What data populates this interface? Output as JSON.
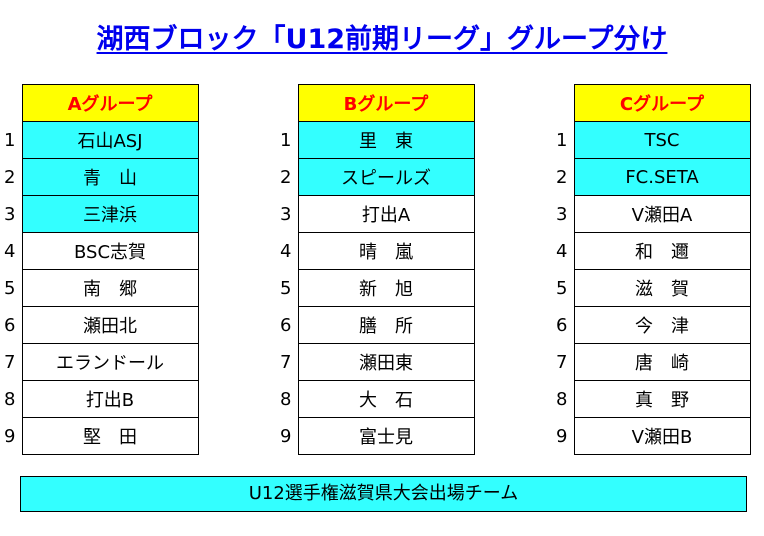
{
  "title": "湖西ブロック「U12前期リーグ」グループ分け",
  "highlight_color": "#33ffff",
  "header_fill_color": "#ffff00",
  "header_text_color": "#ff0000",
  "title_color": "#0000ee",
  "groups": [
    {
      "header": "Aグループ",
      "teams": [
        {
          "num": "1",
          "name": "石山ASJ",
          "qualified": true
        },
        {
          "num": "2",
          "name": "青　山",
          "qualified": true
        },
        {
          "num": "3",
          "name": "三津浜",
          "qualified": true
        },
        {
          "num": "4",
          "name": "BSC志賀",
          "qualified": false
        },
        {
          "num": "5",
          "name": "南　郷",
          "qualified": false
        },
        {
          "num": "6",
          "name": "瀬田北",
          "qualified": false
        },
        {
          "num": "7",
          "name": "エランドール",
          "qualified": false
        },
        {
          "num": "8",
          "name": "打出B",
          "qualified": false
        },
        {
          "num": "9",
          "name": "堅　田",
          "qualified": false
        }
      ]
    },
    {
      "header": "Bグループ",
      "teams": [
        {
          "num": "1",
          "name": "里　東",
          "qualified": true
        },
        {
          "num": "2",
          "name": "スピールズ",
          "qualified": true
        },
        {
          "num": "3",
          "name": "打出A",
          "qualified": false
        },
        {
          "num": "4",
          "name": "晴　嵐",
          "qualified": false
        },
        {
          "num": "5",
          "name": "新　旭",
          "qualified": false
        },
        {
          "num": "6",
          "name": "膳　所",
          "qualified": false
        },
        {
          "num": "7",
          "name": "瀬田東",
          "qualified": false
        },
        {
          "num": "8",
          "name": "大　石",
          "qualified": false
        },
        {
          "num": "9",
          "name": "富士見",
          "qualified": false
        }
      ]
    },
    {
      "header": "Cグループ",
      "teams": [
        {
          "num": "1",
          "name": "TSC",
          "qualified": true
        },
        {
          "num": "2",
          "name": "FC.SETA",
          "qualified": true
        },
        {
          "num": "3",
          "name": "V瀬田A",
          "qualified": false
        },
        {
          "num": "4",
          "name": "和　邇",
          "qualified": false
        },
        {
          "num": "5",
          "name": "滋　賀",
          "qualified": false
        },
        {
          "num": "6",
          "name": "今　津",
          "qualified": false
        },
        {
          "num": "7",
          "name": "唐　崎",
          "qualified": false
        },
        {
          "num": "8",
          "name": "真　野",
          "qualified": false
        },
        {
          "num": "9",
          "name": "V瀬田B",
          "qualified": false
        }
      ]
    }
  ],
  "legend": "U12選手権滋賀県大会出場チーム"
}
